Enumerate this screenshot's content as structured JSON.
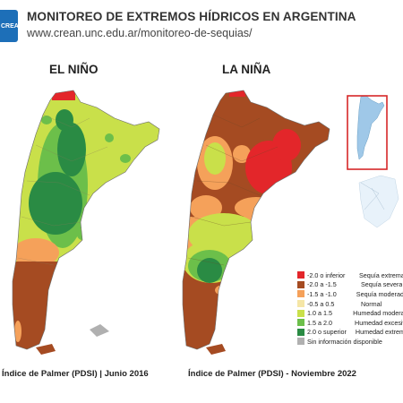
{
  "header": {
    "logo_text": "CREAN",
    "title": "MONITOREO DE EXTREMOS HÍDRICOS EN ARGENTINA",
    "url": "www.crean.unc.edu.ar/monitoreo-de-sequias/"
  },
  "maps": [
    {
      "title": "EL NIÑO",
      "caption": "Índice de Palmer (PDSI) | Junio 2016"
    },
    {
      "title": "LA NIÑA",
      "caption": "Índice de Palmer (PDSI) - Noviembre 2022"
    }
  ],
  "legend": {
    "items": [
      {
        "range": "-2.0 o inferior",
        "desc": "Sequía extrema",
        "color": "#e3262a"
      },
      {
        "range": "-2.0 a -1.5",
        "desc": "Sequía severa",
        "color": "#a54b22"
      },
      {
        "range": "-1.5 a -1.0",
        "desc": "Sequía moderada",
        "color": "#f5a15a"
      },
      {
        "range": "-0.5 a 0.5",
        "desc": "Normal",
        "color": "#f5e6a6"
      },
      {
        "range": "1.0 a 1.5",
        "desc": "Humedad moderada",
        "color": "#c9e04a"
      },
      {
        "range": "1.5 a 2.0",
        "desc": "Humedad excesiva",
        "color": "#6cbf4a"
      },
      {
        "range": "2.0 o superior",
        "desc": "Humedad extrema",
        "color": "#2a8b44"
      },
      {
        "range": "Sin información disponible",
        "desc": "",
        "color": "#b0b0b0"
      }
    ]
  }
}
